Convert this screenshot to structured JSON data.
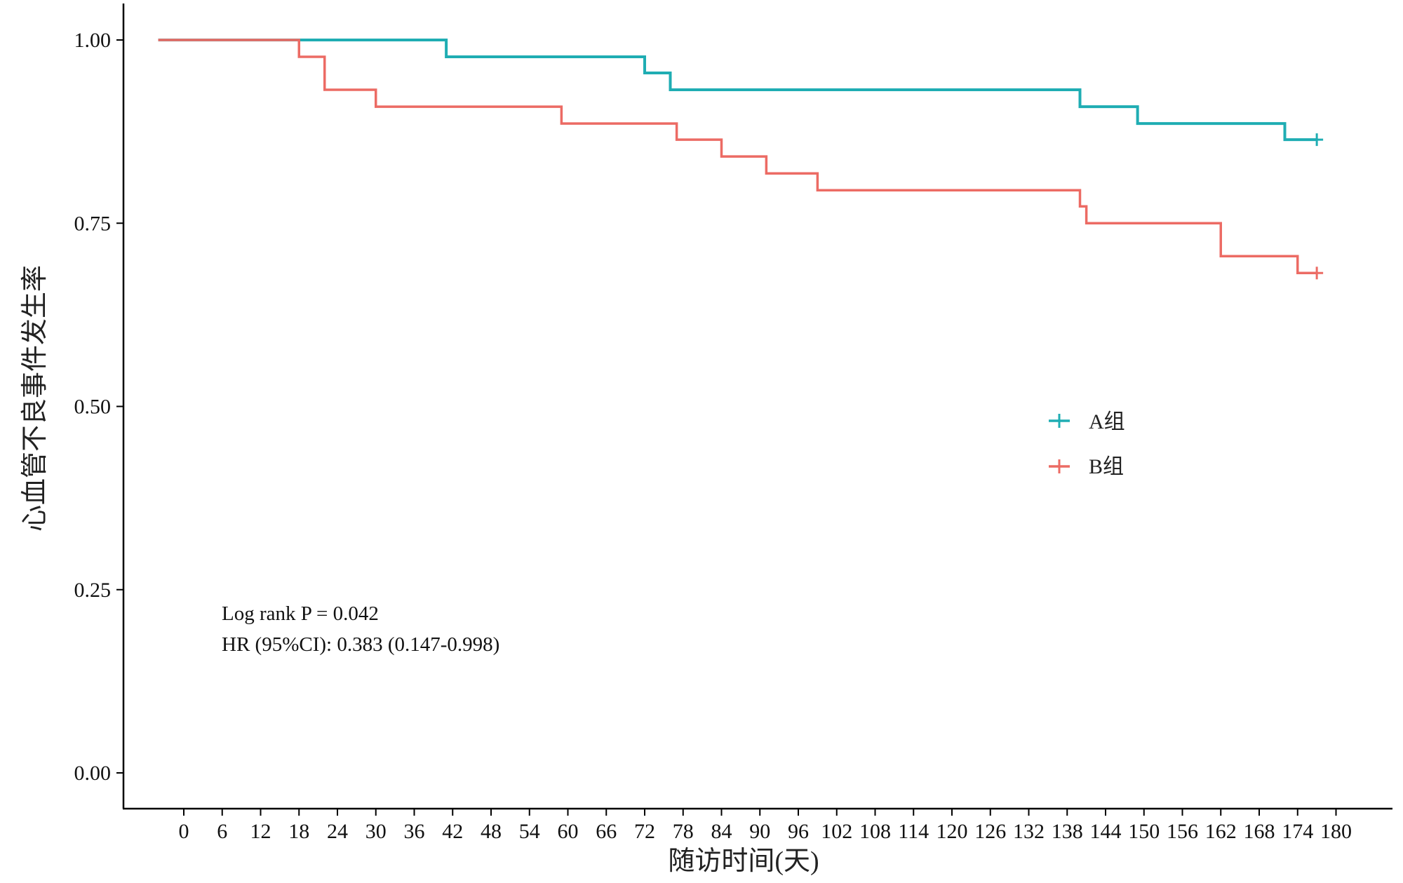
{
  "chart_data": {
    "type": "line",
    "title": "",
    "xlabel": "随访时间(天)",
    "ylabel": "心血管不良事件发生率",
    "xlim": [
      -6,
      190
    ],
    "ylim": [
      -0.05,
      1.05
    ],
    "x_ticks": [
      0,
      6,
      12,
      18,
      24,
      30,
      36,
      42,
      48,
      54,
      60,
      66,
      72,
      78,
      84,
      90,
      96,
      102,
      108,
      114,
      120,
      126,
      132,
      138,
      144,
      150,
      156,
      162,
      168,
      174,
      180
    ],
    "y_ticks": [
      0.0,
      0.25,
      0.5,
      0.75,
      1.0
    ],
    "y_tick_labels": [
      "0.00",
      "0.25",
      "0.50",
      "0.75",
      "1.00"
    ],
    "step": "post",
    "censor_marker": "+",
    "grid": false,
    "legend_position": "center-right",
    "series": [
      {
        "name": "A组",
        "color": "#1FADB3",
        "x": [
          -4,
          41,
          72,
          76,
          140,
          149,
          172,
          177
        ],
        "y": [
          1.0,
          0.977,
          0.955,
          0.932,
          0.909,
          0.886,
          0.864,
          0.864
        ],
        "censor_x": [
          177
        ],
        "censor_y": [
          0.864
        ]
      },
      {
        "name": "B组",
        "color": "#EC6B64",
        "x": [
          -4,
          18,
          22,
          30,
          59,
          77,
          84,
          91,
          99,
          140,
          141,
          162,
          174,
          177
        ],
        "y": [
          1.0,
          0.977,
          0.932,
          0.909,
          0.886,
          0.864,
          0.841,
          0.818,
          0.795,
          0.773,
          0.75,
          0.705,
          0.682,
          0.682
        ],
        "censor_x": [
          177
        ],
        "censor_y": [
          0.682
        ]
      }
    ],
    "annotations": [
      "Log rank P = 0.042",
      "HR (95%CI): 0.383 (0.147-0.998)"
    ]
  }
}
